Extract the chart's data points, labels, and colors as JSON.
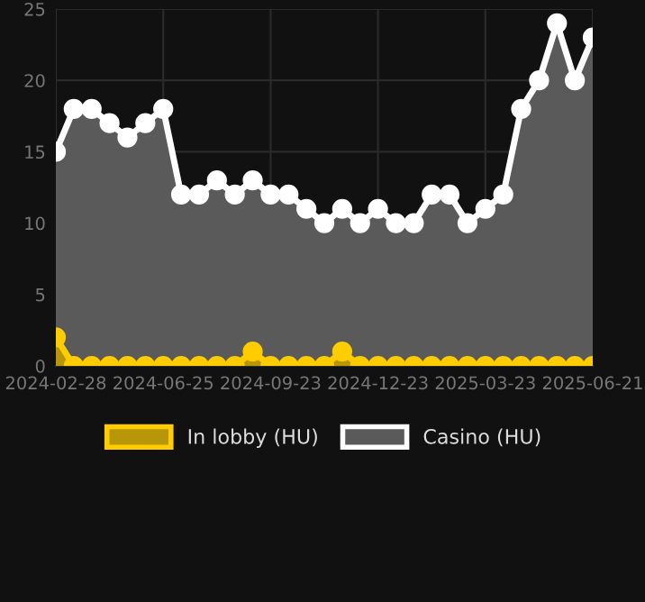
{
  "chart_data": {
    "type": "area",
    "categories": [
      "2024-02-28",
      null,
      null,
      null,
      null,
      null,
      "2024-06-25",
      null,
      null,
      null,
      null,
      null,
      "2024-09-23",
      null,
      null,
      null,
      null,
      null,
      "2024-12-23",
      null,
      null,
      null,
      null,
      null,
      "2025-03-23",
      null,
      null,
      null,
      null,
      null,
      "2025-06-21"
    ],
    "series": [
      {
        "name": "Casino (HU)",
        "color": "#ffffff",
        "values": [
          15,
          18,
          18,
          17,
          16,
          17,
          18,
          12,
          12,
          13,
          12,
          13,
          12,
          12,
          11,
          10,
          11,
          10,
          11,
          10,
          10,
          12,
          12,
          10,
          11,
          12,
          18,
          20,
          24,
          20,
          23
        ]
      },
      {
        "name": "In lobby (HU)",
        "color": "#ffcc00",
        "values": [
          2,
          0,
          0,
          0,
          0,
          0,
          0,
          0,
          0,
          0,
          0,
          1,
          0,
          0,
          0,
          0,
          1,
          0,
          0,
          0,
          0,
          0,
          0,
          0,
          0,
          0,
          0,
          0,
          0,
          0,
          0
        ]
      }
    ],
    "ylim": [
      0,
      25
    ],
    "yticks": [
      0,
      5,
      10,
      15,
      20,
      25
    ],
    "grid": true,
    "legend": "bottom",
    "marker": "circle",
    "line_style": "solid"
  }
}
